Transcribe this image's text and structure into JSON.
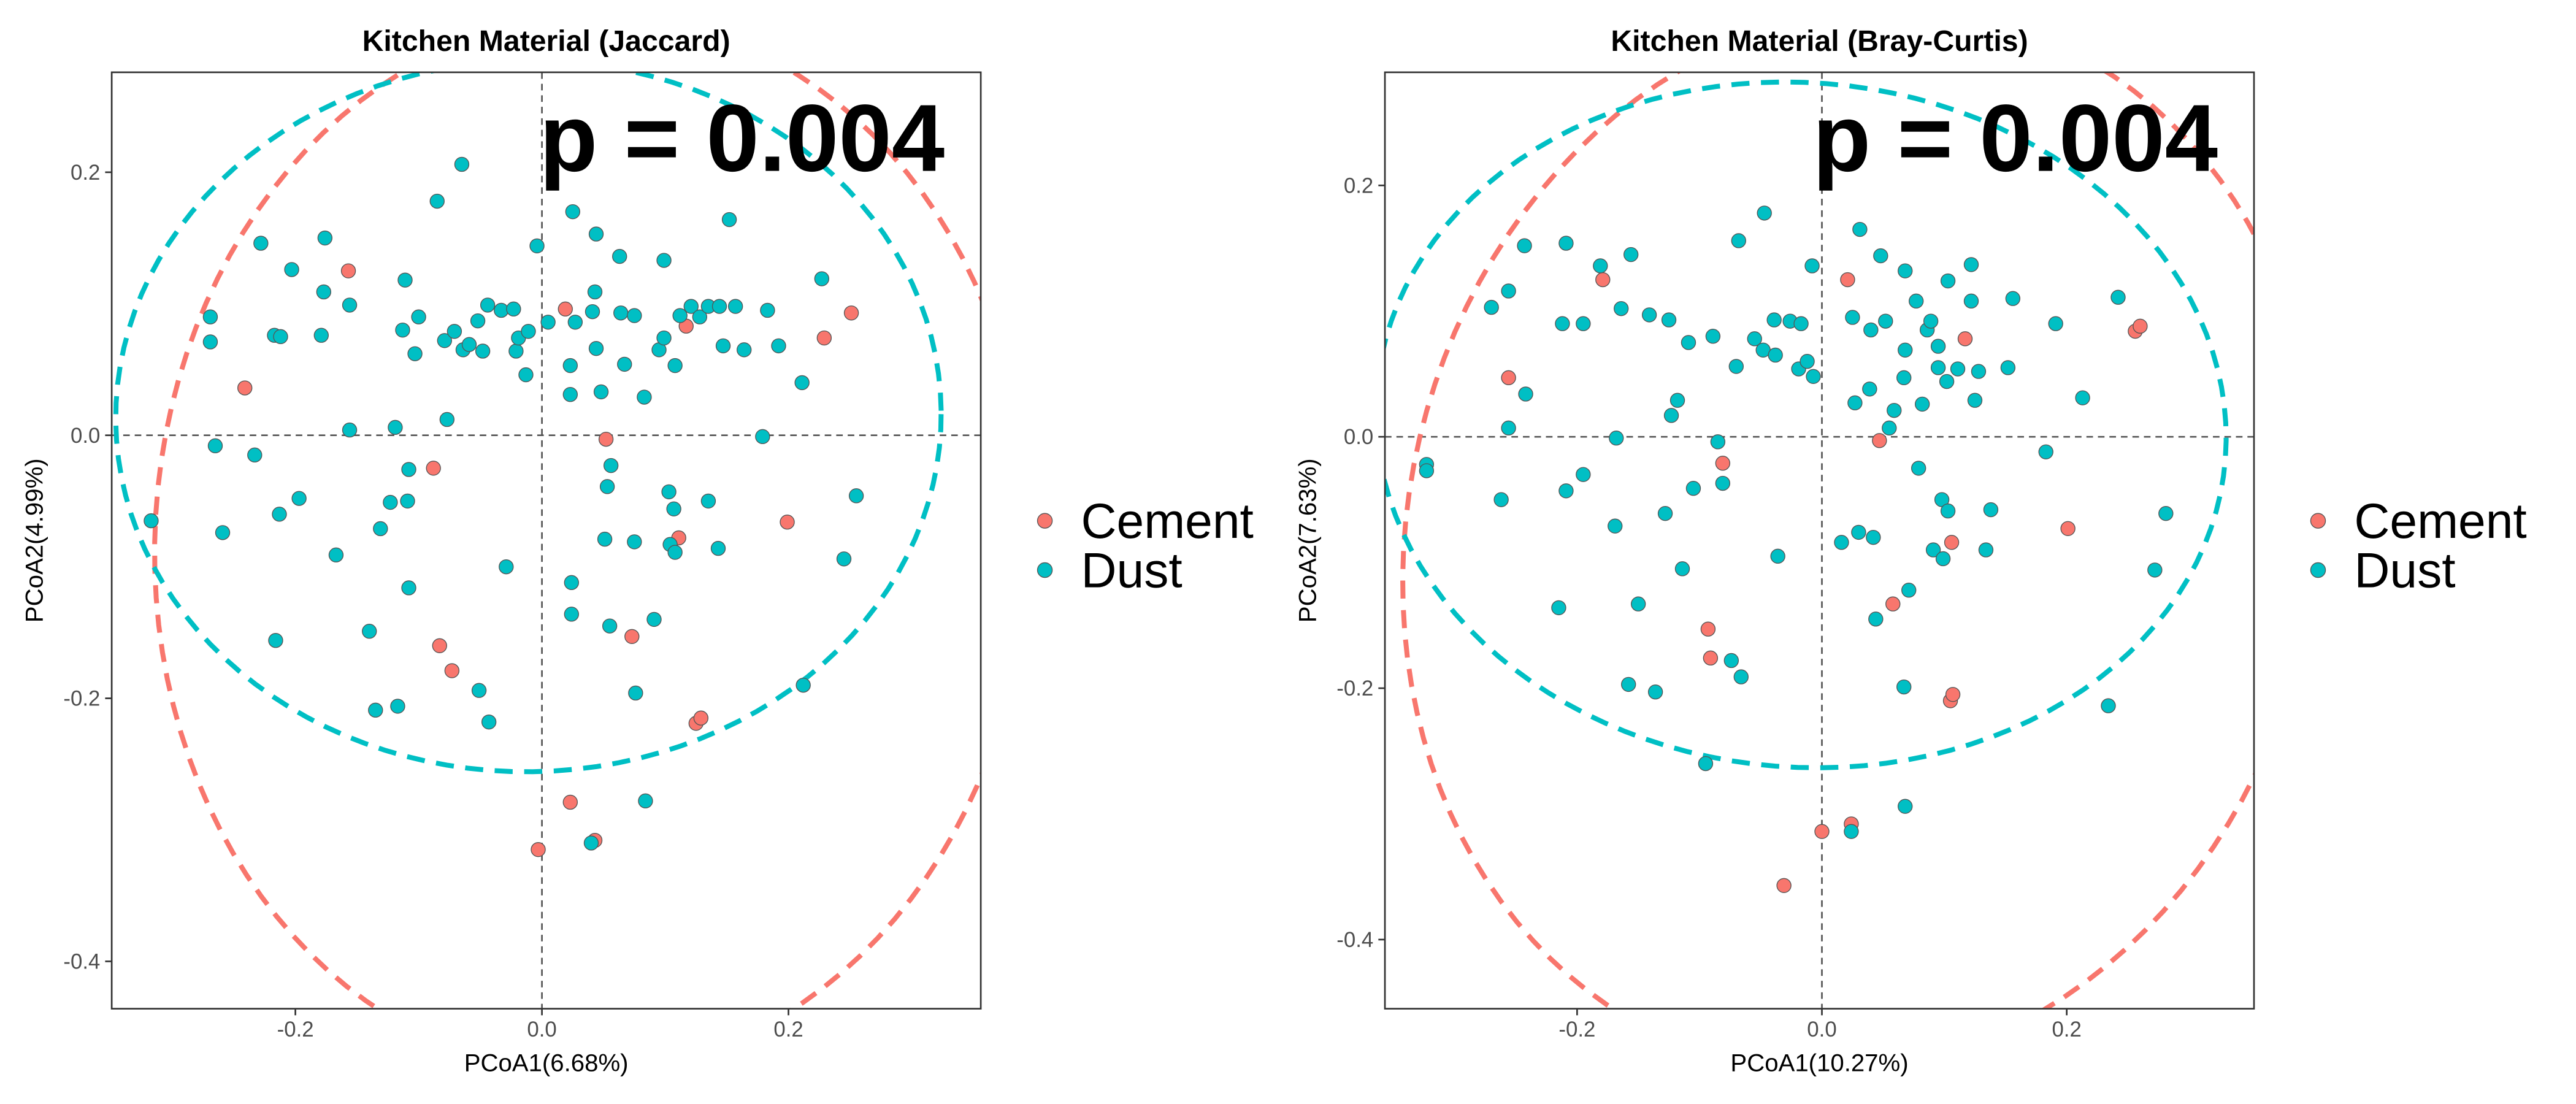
{
  "chart_data": [
    {
      "type": "scatter",
      "title": "Kitchen Material (Jaccard)",
      "xlabel": "PCoA1(6.68%)",
      "ylabel": "PCoA2(4.99%)",
      "annotation": "p = 0.004",
      "xlim": [
        -0.349,
        0.356
      ],
      "ylim": [
        -0.436,
        0.276
      ],
      "xticks": [
        -0.2,
        {
          "value": 0,
          "label": "0.0"
        },
        0.2
      ],
      "yticks": [
        -0.4,
        -0.2,
        {
          "value": 0,
          "label": "0.0"
        },
        0.2
      ],
      "reference_lines": true,
      "ellipses": true,
      "legend": "right",
      "series": [
        {
          "name": "Cement",
          "color": "#F8766D",
          "x": [
            -0.241,
            -0.157,
            -0.088,
            -0.083,
            -0.073,
            0.019,
            0.052,
            0.117,
            0.111,
            0.073,
            0.125,
            0.129,
            0.199,
            0.229,
            0.251,
            0.023,
            -0.003,
            0.043
          ],
          "y": [
            0.036,
            0.125,
            -0.025,
            -0.16,
            -0.179,
            0.096,
            -0.003,
            0.083,
            -0.078,
            -0.153,
            -0.219,
            -0.215,
            -0.066,
            0.074,
            0.093,
            -0.279,
            -0.315,
            -0.308
          ]
        },
        {
          "name": "Dust",
          "color": "#00BFC4",
          "x": [
            -0.317,
            -0.269,
            -0.269,
            -0.259,
            -0.265,
            -0.228,
            -0.233,
            -0.217,
            -0.212,
            -0.213,
            -0.203,
            -0.197,
            -0.216,
            -0.176,
            -0.177,
            -0.179,
            -0.167,
            -0.156,
            -0.156,
            -0.14,
            -0.135,
            -0.131,
            -0.117,
            -0.123,
            -0.119,
            -0.113,
            -0.111,
            -0.109,
            -0.108,
            -0.108,
            -0.103,
            -0.1,
            -0.085,
            -0.079,
            -0.077,
            -0.071,
            -0.065,
            -0.064,
            -0.059,
            -0.052,
            -0.048,
            -0.043,
            -0.051,
            -0.044,
            -0.033,
            -0.029,
            -0.023,
            -0.021,
            -0.019,
            -0.013,
            -0.011,
            -0.004,
            0.005,
            0.025,
            0.027,
            0.023,
            0.023,
            0.024,
            0.024,
            0.044,
            0.043,
            0.041,
            0.044,
            0.048,
            0.051,
            0.053,
            0.056,
            0.055,
            0.063,
            0.064,
            0.067,
            0.075,
            0.075,
            0.076,
            0.083,
            0.091,
            0.084,
            0.095,
            0.099,
            0.099,
            0.103,
            0.104,
            0.107,
            0.108,
            0.108,
            0.112,
            0.121,
            0.128,
            0.135,
            0.135,
            0.144,
            0.143,
            0.147,
            0.152,
            0.157,
            0.164,
            0.183,
            0.179,
            0.192,
            0.211,
            0.212,
            0.227,
            0.245,
            0.255,
            0.04
          ],
          "y": [
            -0.065,
            0.09,
            0.071,
            -0.074,
            -0.008,
            0.146,
            -0.015,
            0.076,
            0.075,
            -0.06,
            0.126,
            -0.048,
            -0.156,
            0.15,
            0.109,
            0.076,
            -0.091,
            0.099,
            0.004,
            -0.149,
            -0.209,
            -0.071,
            -0.206,
            -0.051,
            0.006,
            0.08,
            0.118,
            -0.05,
            -0.026,
            -0.116,
            0.062,
            0.09,
            0.178,
            0.072,
            0.012,
            0.079,
            0.206,
            0.065,
            0.069,
            0.087,
            0.064,
            -0.218,
            -0.194,
            0.099,
            0.095,
            -0.1,
            0.096,
            0.064,
            0.074,
            0.046,
            0.079,
            0.144,
            0.086,
            0.17,
            0.086,
            0.053,
            0.031,
            -0.112,
            -0.136,
            0.153,
            0.109,
            0.094,
            0.066,
            0.033,
            -0.079,
            -0.039,
            -0.023,
            -0.145,
            0.136,
            0.093,
            0.054,
            0.091,
            -0.081,
            -0.196,
            0.029,
            -0.14,
            -0.278,
            0.065,
            0.074,
            0.133,
            -0.043,
            -0.083,
            -0.056,
            -0.089,
            0.053,
            0.091,
            0.098,
            0.09,
            -0.05,
            0.098,
            0.098,
            -0.086,
            0.068,
            0.164,
            0.098,
            0.065,
            0.095,
            -0.001,
            0.068,
            0.04,
            -0.19,
            0.119,
            -0.094,
            -0.046,
            -0.31
          ]
        }
      ]
    },
    {
      "type": "scatter",
      "title": "Kitchen Material (Bray-Curtis)",
      "xlabel": "PCoA1(10.27%)",
      "ylabel": "PCoA2(7.63%)",
      "annotation": "p = 0.004",
      "xlim": [
        -0.357,
        0.353
      ],
      "ylim": [
        -0.455,
        0.29
      ],
      "xticks": [
        -0.2,
        {
          "value": 0,
          "label": "0.0"
        },
        0.2
      ],
      "yticks": [
        -0.4,
        -0.2,
        {
          "value": 0,
          "label": "0.0"
        },
        0.2
      ],
      "reference_lines": true,
      "ellipses": true,
      "legend": "right",
      "series": [
        {
          "name": "Cement",
          "color": "#F8766D",
          "x": [
            -0.256,
            -0.179,
            -0.081,
            -0.093,
            -0.091,
            0.021,
            0.047,
            0.117,
            0.106,
            0.058,
            0.105,
            0.107,
            0.201,
            0.256,
            0.26,
            0,
            0.024,
            -0.031
          ],
          "y": [
            0.047,
            0.125,
            -0.021,
            -0.153,
            -0.176,
            0.125,
            -0.003,
            0.078,
            -0.084,
            -0.133,
            -0.21,
            -0.205,
            -0.073,
            0.084,
            0.088,
            -0.314,
            -0.308,
            -0.357
          ]
        },
        {
          "name": "Dust",
          "color": "#00BFC4",
          "x": [
            -0.323,
            -0.323,
            -0.27,
            -0.256,
            -0.262,
            -0.256,
            -0.243,
            -0.242,
            -0.215,
            -0.212,
            -0.209,
            -0.209,
            -0.195,
            -0.195,
            -0.181,
            -0.168,
            -0.169,
            -0.164,
            -0.158,
            -0.156,
            -0.15,
            -0.141,
            -0.136,
            -0.128,
            -0.125,
            -0.123,
            -0.118,
            -0.114,
            -0.109,
            -0.105,
            -0.095,
            -0.089,
            -0.085,
            -0.081,
            -0.074,
            -0.07,
            -0.068,
            -0.066,
            -0.055,
            -0.048,
            -0.047,
            -0.039,
            -0.036,
            -0.038,
            -0.026,
            -0.019,
            -0.017,
            -0.012,
            -0.007,
            -0.008,
            0.016,
            0.025,
            0.027,
            0.03,
            0.031,
            0.039,
            0.04,
            0.042,
            0.044,
            0.048,
            0.052,
            0.055,
            0.059,
            0.068,
            0.067,
            0.068,
            0.071,
            0.077,
            0.079,
            0.082,
            0.086,
            0.089,
            0.095,
            0.095,
            0.091,
            0.099,
            0.098,
            0.103,
            0.103,
            0.102,
            0.111,
            0.122,
            0.122,
            0.125,
            0.134,
            0.138,
            0.152,
            0.156,
            0.128,
            0.068,
            0.024,
            0.067,
            0.191,
            0.213,
            0.183,
            0.234,
            0.242,
            0.272,
            0.281
          ],
          "y": [
            -0.022,
            -0.027,
            0.103,
            0.116,
            -0.05,
            0.007,
            0.152,
            0.034,
            -0.136,
            0.09,
            0.154,
            -0.043,
            0.09,
            -0.03,
            0.136,
            -0.001,
            -0.071,
            0.102,
            -0.197,
            0.145,
            -0.133,
            0.097,
            -0.203,
            -0.061,
            0.093,
            0.017,
            0.029,
            -0.105,
            0.075,
            -0.041,
            -0.26,
            0.08,
            -0.004,
            -0.037,
            -0.178,
            0.056,
            0.156,
            -0.191,
            0.078,
            0.069,
            0.178,
            0.093,
            -0.095,
            0.065,
            0.092,
            0.054,
            0.09,
            0.06,
            0.048,
            0.136,
            -0.084,
            0.095,
            0.027,
            -0.076,
            0.165,
            0.038,
            0.085,
            -0.08,
            -0.145,
            0.144,
            0.092,
            0.007,
            0.021,
            0.132,
            0.047,
            0.069,
            -0.122,
            0.108,
            -0.025,
            0.026,
            0.085,
            0.092,
            0.072,
            0.055,
            -0.09,
            -0.097,
            -0.05,
            -0.059,
            0.124,
            0.044,
            0.054,
            0.137,
            0.108,
            0.029,
            -0.09,
            -0.058,
            0.055,
            0.11,
            0.052,
            -0.294,
            -0.314,
            -0.199,
            0.09,
            0.031,
            -0.012,
            -0.214,
            0.111,
            -0.106,
            -0.061
          ]
        }
      ]
    }
  ]
}
